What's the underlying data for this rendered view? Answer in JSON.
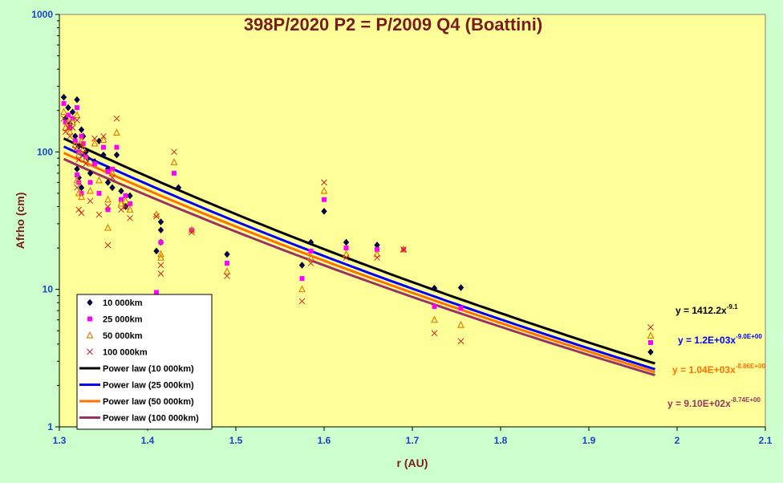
{
  "chart_data": {
    "type": "scatter",
    "title": "398P/2020 P2 = P/2009 Q4 (Boattini)",
    "xlabel": "r (AU)",
    "ylabel": "Afrho (cm)",
    "xlim": [
      1.3,
      2.1
    ],
    "ylim": [
      1,
      1000
    ],
    "yscale": "log",
    "grid": false,
    "legend_position": "bottom-left",
    "x_ticks": [
      "1.3",
      "1.4",
      "1.5",
      "1.6",
      "1.7",
      "1.8",
      "1.9",
      "2",
      "2.1"
    ],
    "y_ticks": [
      "1",
      "10",
      "100",
      "1000"
    ],
    "colors": {
      "plot_bg": "#ffff99",
      "frame_bg": "#ccffcc",
      "k10": "#000000",
      "k25": "#ff00ff",
      "k50": "#e08000",
      "k100": "#cc2222",
      "fit10": "#000000",
      "fit25": "#0000ff",
      "fit50": "#ff7000",
      "fit100": "#993366"
    },
    "series": [
      {
        "name": "10 000km",
        "marker": "diamond",
        "points": [
          [
            1.305,
            250
          ],
          [
            1.307,
            175
          ],
          [
            1.31,
            210
          ],
          [
            1.312,
            160
          ],
          [
            1.315,
            195
          ],
          [
            1.318,
            130
          ],
          [
            1.32,
            240
          ],
          [
            1.322,
            110
          ],
          [
            1.325,
            145
          ],
          [
            1.327,
            130
          ],
          [
            1.33,
            100
          ],
          [
            1.332,
            90
          ],
          [
            1.32,
            75
          ],
          [
            1.322,
            65
          ],
          [
            1.325,
            55
          ],
          [
            1.335,
            70
          ],
          [
            1.34,
            85
          ],
          [
            1.345,
            120
          ],
          [
            1.35,
            95
          ],
          [
            1.355,
            75
          ],
          [
            1.355,
            60
          ],
          [
            1.36,
            55
          ],
          [
            1.365,
            95
          ],
          [
            1.37,
            52
          ],
          [
            1.375,
            40
          ],
          [
            1.38,
            48
          ],
          [
            1.41,
            19
          ],
          [
            1.415,
            31
          ],
          [
            1.415,
            27
          ],
          [
            1.415,
            22
          ],
          [
            1.435,
            55
          ],
          [
            1.45,
            27
          ],
          [
            1.49,
            18
          ],
          [
            1.575,
            15
          ],
          [
            1.585,
            22
          ],
          [
            1.6,
            37
          ],
          [
            1.625,
            22
          ],
          [
            1.66,
            21
          ],
          [
            1.725,
            10.2
          ],
          [
            1.755,
            10.3
          ],
          [
            1.97,
            3.5
          ]
        ]
      },
      {
        "name": "25 000km",
        "marker": "square",
        "points": [
          [
            1.305,
            225
          ],
          [
            1.307,
            165
          ],
          [
            1.31,
            185
          ],
          [
            1.312,
            150
          ],
          [
            1.315,
            175
          ],
          [
            1.318,
            120
          ],
          [
            1.32,
            210
          ],
          [
            1.322,
            100
          ],
          [
            1.325,
            130
          ],
          [
            1.327,
            115
          ],
          [
            1.33,
            92
          ],
          [
            1.32,
            68
          ],
          [
            1.322,
            60
          ],
          [
            1.325,
            50
          ],
          [
            1.335,
            60
          ],
          [
            1.34,
            82
          ],
          [
            1.345,
            50
          ],
          [
            1.35,
            108
          ],
          [
            1.355,
            72
          ],
          [
            1.355,
            38
          ],
          [
            1.36,
            75
          ],
          [
            1.365,
            108
          ],
          [
            1.37,
            45
          ],
          [
            1.375,
            48
          ],
          [
            1.38,
            42
          ],
          [
            1.41,
            9.5
          ],
          [
            1.415,
            22
          ],
          [
            1.415,
            22
          ],
          [
            1.43,
            70
          ],
          [
            1.45,
            27
          ],
          [
            1.49,
            15.5
          ],
          [
            1.575,
            12
          ],
          [
            1.585,
            19
          ],
          [
            1.6,
            45
          ],
          [
            1.625,
            20
          ],
          [
            1.66,
            19.5
          ],
          [
            1.69,
            19.5
          ],
          [
            1.725,
            7.5
          ],
          [
            1.755,
            7.3
          ],
          [
            1.97,
            4.1
          ]
        ]
      },
      {
        "name": "50 000km",
        "marker": "triangle",
        "points": [
          [
            1.305,
            195
          ],
          [
            1.307,
            150
          ],
          [
            1.31,
            165
          ],
          [
            1.312,
            140
          ],
          [
            1.315,
            165
          ],
          [
            1.318,
            112
          ],
          [
            1.32,
            185
          ],
          [
            1.322,
            95
          ],
          [
            1.325,
            120
          ],
          [
            1.327,
            105
          ],
          [
            1.33,
            88
          ],
          [
            1.32,
            62
          ],
          [
            1.322,
            50
          ],
          [
            1.325,
            47
          ],
          [
            1.335,
            52
          ],
          [
            1.34,
            115
          ],
          [
            1.345,
            62
          ],
          [
            1.35,
            122
          ],
          [
            1.355,
            28
          ],
          [
            1.355,
            45
          ],
          [
            1.36,
            70
          ],
          [
            1.365,
            138
          ],
          [
            1.37,
            42
          ],
          [
            1.375,
            44
          ],
          [
            1.38,
            38
          ],
          [
            1.41,
            35
          ],
          [
            1.415,
            18
          ],
          [
            1.415,
            17
          ],
          [
            1.43,
            84
          ],
          [
            1.45,
            27
          ],
          [
            1.49,
            13.5
          ],
          [
            1.575,
            10
          ],
          [
            1.585,
            17
          ],
          [
            1.6,
            52
          ],
          [
            1.625,
            18
          ],
          [
            1.66,
            18
          ],
          [
            1.69,
            19.5
          ],
          [
            1.725,
            6
          ],
          [
            1.755,
            5.5
          ],
          [
            1.97,
            4.6
          ]
        ]
      },
      {
        "name": "100 000km",
        "marker": "x",
        "points": [
          [
            1.305,
            175
          ],
          [
            1.307,
            140
          ],
          [
            1.31,
            150
          ],
          [
            1.312,
            130
          ],
          [
            1.315,
            150
          ],
          [
            1.318,
            105
          ],
          [
            1.32,
            170
          ],
          [
            1.322,
            88
          ],
          [
            1.325,
            112
          ],
          [
            1.327,
            98
          ],
          [
            1.33,
            82
          ],
          [
            1.32,
            55
          ],
          [
            1.322,
            38
          ],
          [
            1.325,
            36
          ],
          [
            1.335,
            44
          ],
          [
            1.34,
            125
          ],
          [
            1.345,
            35
          ],
          [
            1.35,
            130
          ],
          [
            1.355,
            21
          ],
          [
            1.355,
            40
          ],
          [
            1.36,
            65
          ],
          [
            1.365,
            175
          ],
          [
            1.37,
            38
          ],
          [
            1.375,
            40
          ],
          [
            1.38,
            33
          ],
          [
            1.41,
            34
          ],
          [
            1.415,
            15
          ],
          [
            1.415,
            13
          ],
          [
            1.43,
            100
          ],
          [
            1.45,
            26
          ],
          [
            1.49,
            12.5
          ],
          [
            1.575,
            8.2
          ],
          [
            1.585,
            15.5
          ],
          [
            1.6,
            60
          ],
          [
            1.625,
            17
          ],
          [
            1.66,
            17
          ],
          [
            1.69,
            19.5
          ],
          [
            1.725,
            4.8
          ],
          [
            1.755,
            4.2
          ],
          [
            1.97,
            5.3
          ]
        ]
      }
    ],
    "fits": [
      {
        "name": "Power law (10 000km)",
        "a": 1412.2,
        "b": -9.1,
        "equation": "y = 1412.2x",
        "exponent": "-9.1"
      },
      {
        "name": "Power law (25 000km)",
        "a": 1200,
        "b": -9.0,
        "equation": "y = 1.2E+03x",
        "exponent": "-9.0E+00"
      },
      {
        "name": "Power law (50 000km)",
        "a": 1040,
        "b": -8.86,
        "equation": "y = 1.04E+03x",
        "exponent": "-8.86E+00"
      },
      {
        "name": "Power law (100 000km)",
        "a": 910,
        "b": -8.74,
        "equation": "y = 9.10E+02x",
        "exponent": "-8.74E+00"
      }
    ],
    "fit_x_range": [
      1.305,
      1.975
    ]
  }
}
